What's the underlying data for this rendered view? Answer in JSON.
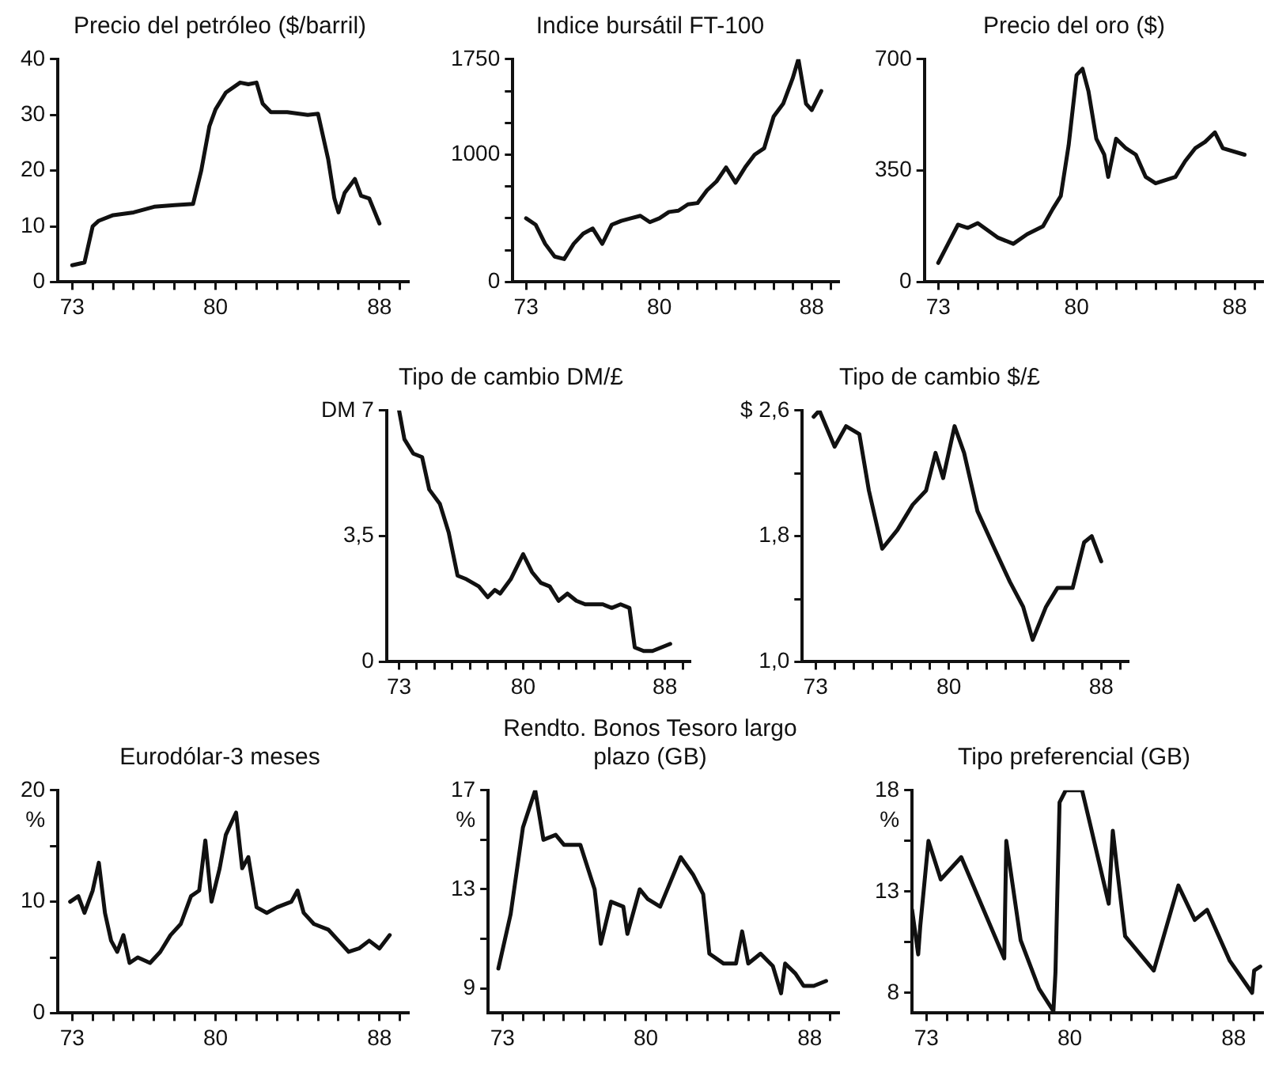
{
  "chart_data": [
    {
      "type": "line",
      "title": "Precio del petróleo ($/barril)",
      "color": "#111111",
      "xlim": [
        72.3,
        89.4
      ],
      "ylim": [
        0,
        40
      ],
      "yticks": [
        0,
        10,
        20,
        30,
        40
      ],
      "xticks": [
        73,
        {
          "value": 74,
          "label": null
        },
        {
          "value": 75,
          "label": null
        },
        {
          "value": 76,
          "label": null
        },
        {
          "value": 77,
          "label": null
        },
        {
          "value": 78,
          "label": null
        },
        {
          "value": 79,
          "label": null
        },
        80,
        {
          "value": 81,
          "label": null
        },
        {
          "value": 82,
          "label": null
        },
        {
          "value": 83,
          "label": null
        },
        {
          "value": 84,
          "label": null
        },
        {
          "value": 85,
          "label": null
        },
        {
          "value": 86,
          "label": null
        },
        {
          "value": 87,
          "label": null
        },
        88,
        {
          "value": 89,
          "label": null
        }
      ],
      "x": [
        73,
        73.6,
        74.0,
        74.3,
        75,
        76,
        77,
        78,
        78.9,
        79.3,
        79.7,
        80,
        80.5,
        81.2,
        81.6,
        82,
        82.3,
        82.7,
        83.5,
        84.5,
        85.0,
        85.5,
        85.8,
        86.0,
        86.3,
        86.8,
        87.1,
        87.5,
        88.0
      ],
      "values": [
        3,
        3.5,
        10,
        11,
        12,
        12.5,
        13.5,
        13.8,
        14,
        20,
        28,
        31,
        34,
        35.8,
        35.5,
        35.8,
        32,
        30.5,
        30.5,
        30,
        30.2,
        22,
        15,
        12.5,
        16,
        18.5,
        15.5,
        15,
        10.5
      ]
    },
    {
      "type": "line",
      "title": "Indice bursátil FT-100",
      "color": "#111111",
      "xlim": [
        72.3,
        89.4
      ],
      "ylim": [
        0,
        1750
      ],
      "yticks": [
        0,
        {
          "value": 250,
          "label": null
        },
        {
          "value": 500,
          "label": null
        },
        {
          "value": 750,
          "label": null
        },
        1000,
        {
          "value": 1250,
          "label": null
        },
        {
          "value": 1500,
          "label": null
        },
        1750
      ],
      "xticks": [
        73,
        {
          "value": 74,
          "label": null
        },
        {
          "value": 75,
          "label": null
        },
        {
          "value": 76,
          "label": null
        },
        {
          "value": 77,
          "label": null
        },
        {
          "value": 78,
          "label": null
        },
        {
          "value": 79,
          "label": null
        },
        80,
        {
          "value": 81,
          "label": null
        },
        {
          "value": 82,
          "label": null
        },
        {
          "value": 83,
          "label": null
        },
        {
          "value": 84,
          "label": null
        },
        {
          "value": 85,
          "label": null
        },
        {
          "value": 86,
          "label": null
        },
        {
          "value": 87,
          "label": null
        },
        88,
        {
          "value": 89,
          "label": null
        }
      ],
      "x": [
        73,
        73.5,
        74,
        74.5,
        75,
        75.5,
        76,
        76.5,
        77,
        77.5,
        78,
        78.5,
        79,
        79.5,
        80,
        80.5,
        81,
        81.5,
        82,
        82.5,
        83,
        83.5,
        84,
        84.5,
        85,
        85.5,
        86,
        86.5,
        87,
        87.3,
        87.7,
        88,
        88.5
      ],
      "values": [
        500,
        450,
        300,
        200,
        180,
        300,
        380,
        420,
        300,
        450,
        480,
        500,
        520,
        470,
        500,
        550,
        560,
        610,
        620,
        720,
        790,
        900,
        780,
        900,
        1000,
        1050,
        1300,
        1400,
        1600,
        1750,
        1400,
        1350,
        1500
      ]
    },
    {
      "type": "line",
      "title": "Precio del oro ($)",
      "color": "#111111",
      "xlim": [
        72.3,
        89.4
      ],
      "ylim": [
        0,
        700
      ],
      "yticks": [
        0,
        350,
        700
      ],
      "xticks": [
        73,
        {
          "value": 74,
          "label": null
        },
        {
          "value": 75,
          "label": null
        },
        {
          "value": 76,
          "label": null
        },
        {
          "value": 77,
          "label": null
        },
        {
          "value": 78,
          "label": null
        },
        {
          "value": 79,
          "label": null
        },
        80,
        {
          "value": 81,
          "label": null
        },
        {
          "value": 82,
          "label": null
        },
        {
          "value": 83,
          "label": null
        },
        {
          "value": 84,
          "label": null
        },
        {
          "value": 85,
          "label": null
        },
        {
          "value": 86,
          "label": null
        },
        {
          "value": 87,
          "label": null
        },
        88,
        {
          "value": 89,
          "label": null
        }
      ],
      "x": [
        73,
        73.5,
        74,
        74.5,
        75,
        76,
        76.8,
        77.5,
        78.3,
        78.8,
        79.2,
        79.6,
        80.0,
        80.3,
        80.6,
        81,
        81.4,
        81.6,
        82,
        82.5,
        83,
        83.5,
        84,
        85,
        85.5,
        86,
        86.5,
        87,
        87.4,
        88.5
      ],
      "values": [
        60,
        120,
        180,
        170,
        185,
        140,
        120,
        150,
        175,
        230,
        270,
        430,
        650,
        670,
        600,
        450,
        400,
        330,
        450,
        420,
        400,
        330,
        310,
        330,
        380,
        420,
        440,
        470,
        420,
        400
      ]
    },
    {
      "type": "line",
      "title": "Tipo de cambio DM/£",
      "color": "#111111",
      "xlim": [
        72.3,
        89.4
      ],
      "ylim": [
        0,
        7
      ],
      "yticks": [
        0,
        {
          "value": 3.5,
          "label": "3,5"
        },
        {
          "value": 7,
          "label": "DM 7"
        }
      ],
      "xticks": [
        73,
        {
          "value": 74,
          "label": null
        },
        {
          "value": 75,
          "label": null
        },
        {
          "value": 76,
          "label": null
        },
        {
          "value": 77,
          "label": null
        },
        {
          "value": 78,
          "label": null
        },
        {
          "value": 79,
          "label": null
        },
        80,
        {
          "value": 81,
          "label": null
        },
        {
          "value": 82,
          "label": null
        },
        {
          "value": 83,
          "label": null
        },
        {
          "value": 84,
          "label": null
        },
        {
          "value": 85,
          "label": null
        },
        {
          "value": 86,
          "label": null
        },
        {
          "value": 87,
          "label": null
        },
        88,
        {
          "value": 89,
          "label": null
        }
      ],
      "x": [
        73,
        73.3,
        73.8,
        74.3,
        74.7,
        75.3,
        75.8,
        76.3,
        76.8,
        77.5,
        78,
        78.4,
        78.7,
        79.3,
        80,
        80.5,
        81,
        81.5,
        82,
        82.5,
        83,
        83.5,
        84,
        84.5,
        85,
        85.5,
        86,
        86.3,
        86.8,
        87.3,
        87.8,
        88.3
      ],
      "values": [
        7,
        6.2,
        5.8,
        5.7,
        4.8,
        4.4,
        3.6,
        2.4,
        2.3,
        2.1,
        1.8,
        2.0,
        1.9,
        2.3,
        3.0,
        2.5,
        2.2,
        2.1,
        1.7,
        1.9,
        1.7,
        1.6,
        1.6,
        1.6,
        1.5,
        1.6,
        1.5,
        0.4,
        0.3,
        0.3,
        0.4,
        0.5
      ]
    },
    {
      "type": "line",
      "title": "Tipo de cambio $/£",
      "color": "#111111",
      "xlim": [
        72.3,
        89.4
      ],
      "ylim": [
        1.0,
        2.6
      ],
      "yticks": [
        {
          "value": 1.0,
          "label": "1,0"
        },
        {
          "value": 1.4,
          "label": null
        },
        {
          "value": 1.8,
          "label": "1,8"
        },
        {
          "value": 2.2,
          "label": null
        },
        {
          "value": 2.6,
          "label": "$ 2,6"
        }
      ],
      "xticks": [
        73,
        {
          "value": 74,
          "label": null
        },
        {
          "value": 75,
          "label": null
        },
        {
          "value": 76,
          "label": null
        },
        {
          "value": 77,
          "label": null
        },
        {
          "value": 78,
          "label": null
        },
        {
          "value": 79,
          "label": null
        },
        80,
        {
          "value": 81,
          "label": null
        },
        {
          "value": 82,
          "label": null
        },
        {
          "value": 83,
          "label": null
        },
        {
          "value": 84,
          "label": null
        },
        {
          "value": 85,
          "label": null
        },
        {
          "value": 86,
          "label": null
        },
        {
          "value": 87,
          "label": null
        },
        88,
        {
          "value": 89,
          "label": null
        }
      ],
      "x": [
        72.9,
        73.2,
        74,
        74.6,
        75.3,
        75.8,
        76.5,
        77.3,
        78.1,
        78.8,
        79.3,
        79.7,
        80.3,
        80.8,
        81.5,
        82.4,
        83.2,
        83.9,
        84.4,
        85.1,
        85.7,
        86.5,
        87.1,
        87.5,
        88
      ],
      "values": [
        2.56,
        2.6,
        2.37,
        2.5,
        2.45,
        2.09,
        1.72,
        1.84,
        2.0,
        2.09,
        2.33,
        2.17,
        2.5,
        2.33,
        1.96,
        1.72,
        1.51,
        1.35,
        1.14,
        1.35,
        1.47,
        1.47,
        1.76,
        1.8,
        1.64
      ]
    },
    {
      "type": "line",
      "title": "Eurodólar-3 meses",
      "ylabel": "%",
      "color": "#111111",
      "xlim": [
        72.3,
        89.4
      ],
      "ylim": [
        0,
        20
      ],
      "yticks": [
        0,
        {
          "value": 5,
          "label": null
        },
        10,
        {
          "value": 15,
          "label": null
        },
        20
      ],
      "xticks": [
        73,
        {
          "value": 74,
          "label": null
        },
        {
          "value": 75,
          "label": null
        },
        {
          "value": 76,
          "label": null
        },
        {
          "value": 77,
          "label": null
        },
        {
          "value": 78,
          "label": null
        },
        {
          "value": 79,
          "label": null
        },
        80,
        {
          "value": 81,
          "label": null
        },
        {
          "value": 82,
          "label": null
        },
        {
          "value": 83,
          "label": null
        },
        {
          "value": 84,
          "label": null
        },
        {
          "value": 85,
          "label": null
        },
        {
          "value": 86,
          "label": null
        },
        {
          "value": 87,
          "label": null
        },
        88,
        {
          "value": 89,
          "label": null
        }
      ],
      "x": [
        72.9,
        73.3,
        73.6,
        74,
        74.3,
        74.6,
        74.9,
        75.2,
        75.5,
        75.8,
        76.2,
        76.8,
        77.3,
        77.8,
        78.3,
        78.8,
        79.2,
        79.5,
        79.8,
        80.2,
        80.5,
        81,
        81.3,
        81.6,
        82,
        82.5,
        83,
        83.7,
        84,
        84.3,
        84.8,
        85.5,
        86,
        86.5,
        87,
        87.5,
        88,
        88.5
      ],
      "values": [
        10,
        10.5,
        9,
        11,
        13.5,
        9,
        6.5,
        5.5,
        7,
        4.5,
        5,
        4.5,
        5.5,
        7,
        8,
        10.5,
        11,
        15.5,
        10,
        13,
        16,
        18,
        13,
        14,
        9.5,
        9,
        9.5,
        10,
        11,
        9,
        8,
        7.5,
        6.5,
        5.5,
        5.8,
        6.5,
        5.8,
        7
      ]
    },
    {
      "type": "line",
      "title": "Rendto. Bonos Tesoro largo plazo (GB)",
      "ylabel": "%",
      "color": "#111111",
      "xlim": [
        72.3,
        89.4
      ],
      "ylim": [
        8,
        17
      ],
      "yticks": [
        9,
        {
          "value": 11,
          "label": null
        },
        13,
        {
          "value": 15,
          "label": null
        },
        17
      ],
      "xticks": [
        73,
        {
          "value": 74,
          "label": null
        },
        {
          "value": 75,
          "label": null
        },
        {
          "value": 76,
          "label": null
        },
        {
          "value": 77,
          "label": null
        },
        {
          "value": 78,
          "label": null
        },
        {
          "value": 79,
          "label": null
        },
        80,
        {
          "value": 81,
          "label": null
        },
        {
          "value": 82,
          "label": null
        },
        {
          "value": 83,
          "label": null
        },
        {
          "value": 84,
          "label": null
        },
        {
          "value": 85,
          "label": null
        },
        {
          "value": 86,
          "label": null
        },
        {
          "value": 87,
          "label": null
        },
        88,
        {
          "value": 89,
          "label": null
        }
      ],
      "x": [
        72.8,
        73.4,
        74,
        74.6,
        75,
        75.6,
        76,
        76.8,
        77.5,
        77.8,
        78.3,
        78.9,
        79.1,
        79.7,
        80.1,
        80.7,
        81.7,
        82.3,
        82.8,
        83.1,
        83.8,
        84.4,
        84.7,
        85,
        85.6,
        86.2,
        86.6,
        86.8,
        87.3,
        87.7,
        88.2,
        88.8
      ],
      "values": [
        9.8,
        12,
        15.5,
        17,
        15,
        15.2,
        14.8,
        14.8,
        13,
        10.8,
        12.5,
        12.3,
        11.2,
        13,
        12.6,
        12.3,
        14.3,
        13.6,
        12.8,
        10.4,
        10,
        10,
        11.3,
        10,
        10.4,
        9.9,
        8.8,
        10,
        9.6,
        9.1,
        9.1,
        9.3
      ]
    },
    {
      "type": "line",
      "title": "Tipo preferencial (GB)",
      "ylabel": "%",
      "color": "#111111",
      "xlim": [
        72.3,
        89.4
      ],
      "ylim": [
        7,
        18
      ],
      "yticks": [
        8,
        {
          "value": 10.5,
          "label": null
        },
        13,
        {
          "value": 15.5,
          "label": null
        },
        18
      ],
      "xticks": [
        73,
        {
          "value": 74,
          "label": null
        },
        {
          "value": 75,
          "label": null
        },
        {
          "value": 76,
          "label": null
        },
        {
          "value": 77,
          "label": null
        },
        {
          "value": 78,
          "label": null
        },
        {
          "value": 79,
          "label": null
        },
        80,
        {
          "value": 81,
          "label": null
        },
        {
          "value": 82,
          "label": null
        },
        {
          "value": 83,
          "label": null
        },
        {
          "value": 84,
          "label": null
        },
        {
          "value": 85,
          "label": null
        },
        {
          "value": 86,
          "label": null
        },
        {
          "value": 87,
          "label": null
        },
        88,
        {
          "value": 89,
          "label": null
        }
      ],
      "x": [
        72.3,
        72.6,
        72.7,
        73.1,
        73.7,
        74.7,
        76.8,
        76.9,
        77.6,
        78.5,
        79.2,
        79.3,
        79.5,
        79.8,
        80.6,
        81,
        81.9,
        82.1,
        82.3,
        82.7,
        84.1,
        85.3,
        86.1,
        86.7,
        87.8,
        88.9,
        89,
        89.3
      ],
      "values": [
        12.1,
        9.9,
        11.3,
        15.5,
        13.6,
        14.7,
        9.7,
        15.5,
        10.6,
        8.2,
        7.1,
        9,
        17.4,
        18,
        18,
        16.3,
        12.4,
        16,
        14.2,
        10.8,
        9.1,
        13.3,
        11.6,
        12.1,
        9.6,
        8,
        9.1,
        9.3
      ]
    }
  ]
}
